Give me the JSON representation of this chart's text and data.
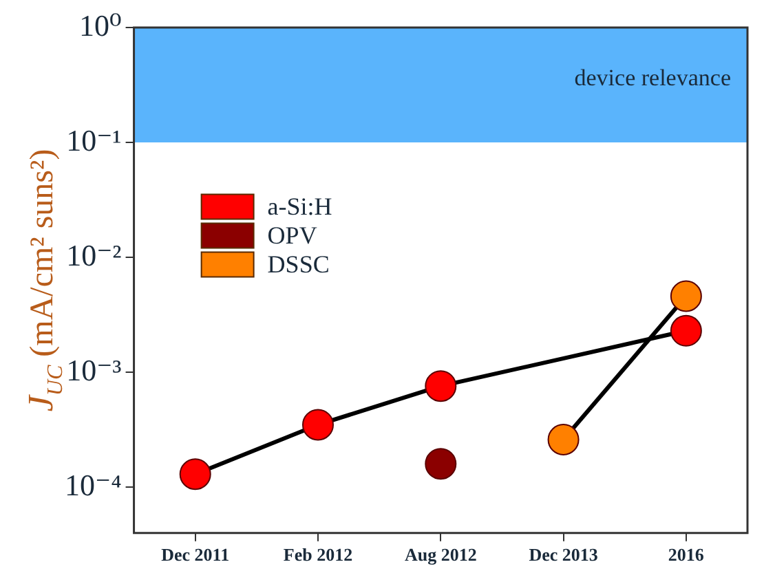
{
  "chart_data": {
    "type": "line",
    "ylabel": "J$_{UC}$ (mA/cm² suns²)",
    "categories": [
      "Dec 2011",
      "Feb 2012",
      "Aug 2012",
      "Dec 2013",
      "2016"
    ],
    "series": [
      {
        "name": "a-Si:H",
        "color": "#ff0000",
        "values": [
          0.00013,
          0.00035,
          0.00076,
          null,
          0.0023
        ]
      },
      {
        "name": "OPV",
        "color": "#8b0000",
        "type": "scatter",
        "values": [
          null,
          null,
          0.00016,
          null,
          null
        ]
      },
      {
        "name": "DSSC",
        "color": "#ff8000",
        "values": [
          null,
          null,
          null,
          0.00026,
          0.0046
        ]
      }
    ],
    "log": "y",
    "ylim": [
      4e-05,
      1
    ],
    "yticks": [
      {
        "value": 1,
        "label": "10⁰"
      },
      {
        "value": 0.1,
        "label": "10⁻¹"
      },
      {
        "value": 0.01,
        "label": "10⁻²"
      },
      {
        "value": 0.001,
        "label": "10⁻³"
      },
      {
        "value": 0.0001,
        "label": "10⁻⁴"
      }
    ],
    "bands": [
      {
        "axis": "y",
        "from": 0.1,
        "to": 1,
        "label": "device relevance",
        "color": "#5ab4fc"
      }
    ],
    "legend": "top left",
    "marker": "circle",
    "grid": false
  }
}
